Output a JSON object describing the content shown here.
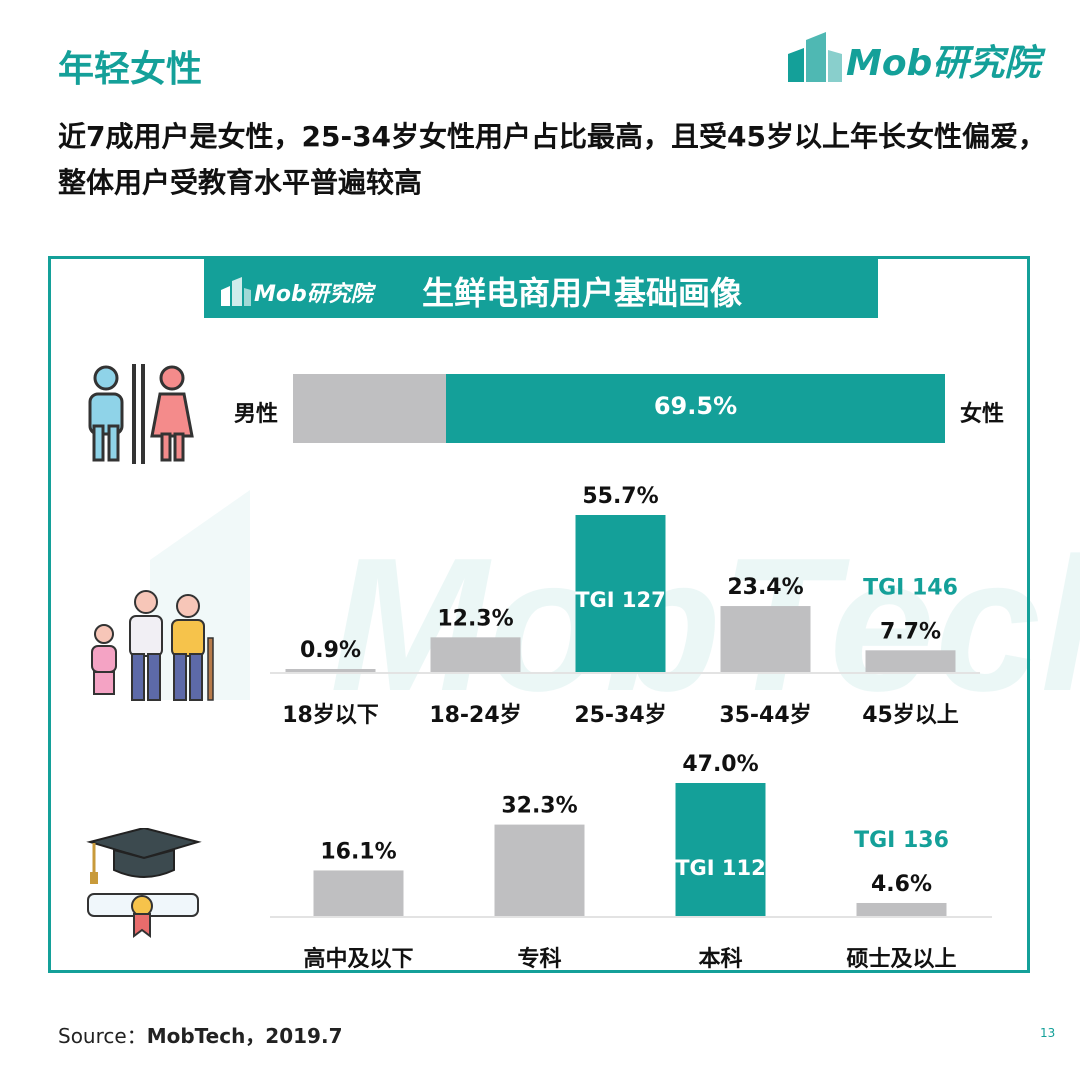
{
  "page": {
    "title": "年轻女性",
    "logo_text": "Mob研究院",
    "subtitle": "近7成用户是女性，25-34岁女性用户占比最高，且受45岁以上年长女性偏爱，整体用户受教育水平普遍较高",
    "banner_logo": "Mob研究院",
    "banner_title": "生鲜电商用户基础画像",
    "watermark": "MobTech",
    "source_prefix": "Source：",
    "source_value": "MobTech，2019.7",
    "page_number": "13"
  },
  "colors": {
    "teal": "#14a099",
    "gray": "#bfbfc1",
    "pink": "#f48b8b",
    "blue": "#8fd3e8"
  },
  "icons": {
    "gender": "male-female-restroom-icon",
    "age": "family-generations-icon",
    "education": "graduation-cap-diploma-icon"
  },
  "chart_data": [
    {
      "type": "bar",
      "orientation": "horizontal-stacked",
      "categories": [
        "男性",
        "女性"
      ],
      "values": [
        30.5,
        69.5
      ],
      "value_label": "69.5%"
    },
    {
      "type": "bar",
      "categories": [
        "18岁以下",
        "18-24岁",
        "25-34岁",
        "35-44岁",
        "45岁以上"
      ],
      "values": [
        0.9,
        12.3,
        55.7,
        23.4,
        7.7
      ],
      "labels": [
        "0.9%",
        "12.3%",
        "55.7%",
        "23.4%",
        "7.7%"
      ],
      "highlight": [
        2
      ],
      "annotations": [
        {
          "category": "25-34岁",
          "text": "TGI 127",
          "position": "inside"
        },
        {
          "category": "45岁以上",
          "text": "TGI 146",
          "position": "above"
        }
      ]
    },
    {
      "type": "bar",
      "categories": [
        "高中及以下",
        "专科",
        "本科",
        "硕士及以上"
      ],
      "values": [
        16.1,
        32.3,
        47.0,
        4.6
      ],
      "labels": [
        "16.1%",
        "32.3%",
        "47.0%",
        "4.6%"
      ],
      "highlight": [
        2
      ],
      "annotations": [
        {
          "category": "本科",
          "text": "TGI 112",
          "position": "inside"
        },
        {
          "category": "硕士及以上",
          "text": "TGI 136",
          "position": "above"
        }
      ]
    }
  ]
}
